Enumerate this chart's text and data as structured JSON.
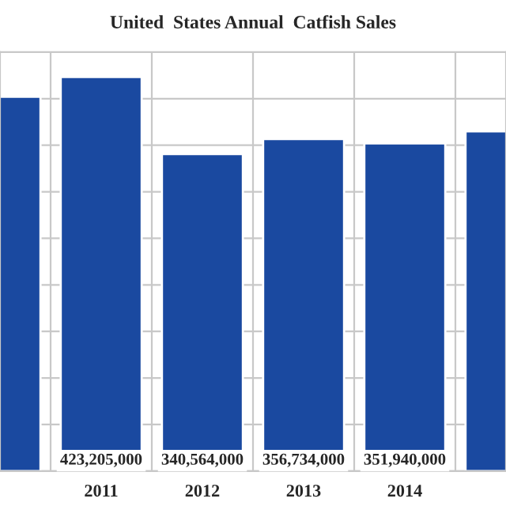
{
  "chart_data": {
    "type": "bar",
    "title": "United  States Annual  Catfish Sales",
    "categories": [
      null,
      "2011",
      "2012",
      "2013",
      "2014",
      null
    ],
    "values": [
      402000000,
      423205000,
      340564000,
      356734000,
      351940000,
      365000000
    ],
    "value_labels": [
      null,
      "423,205,000",
      "340,564,000",
      "356,734,000",
      "351,940,000",
      null
    ],
    "color": "#1a49a0",
    "ylim": [
      0,
      450000000
    ],
    "yticks": [
      {
        "value": 0,
        "label": null
      },
      {
        "value": 50000000,
        "label": null
      },
      {
        "value": 100000000,
        "label": null
      },
      {
        "value": 150000000,
        "label": null
      },
      {
        "value": 200000000,
        "label": null
      },
      {
        "value": 250000000,
        "label": null
      },
      {
        "value": 300000000,
        "label": null
      },
      {
        "value": 350000000,
        "label": null
      },
      {
        "value": 400000000,
        "label": null
      },
      {
        "value": 450000000,
        "label": null
      }
    ],
    "grid": true,
    "legend": false,
    "tick_labels": "x"
  }
}
